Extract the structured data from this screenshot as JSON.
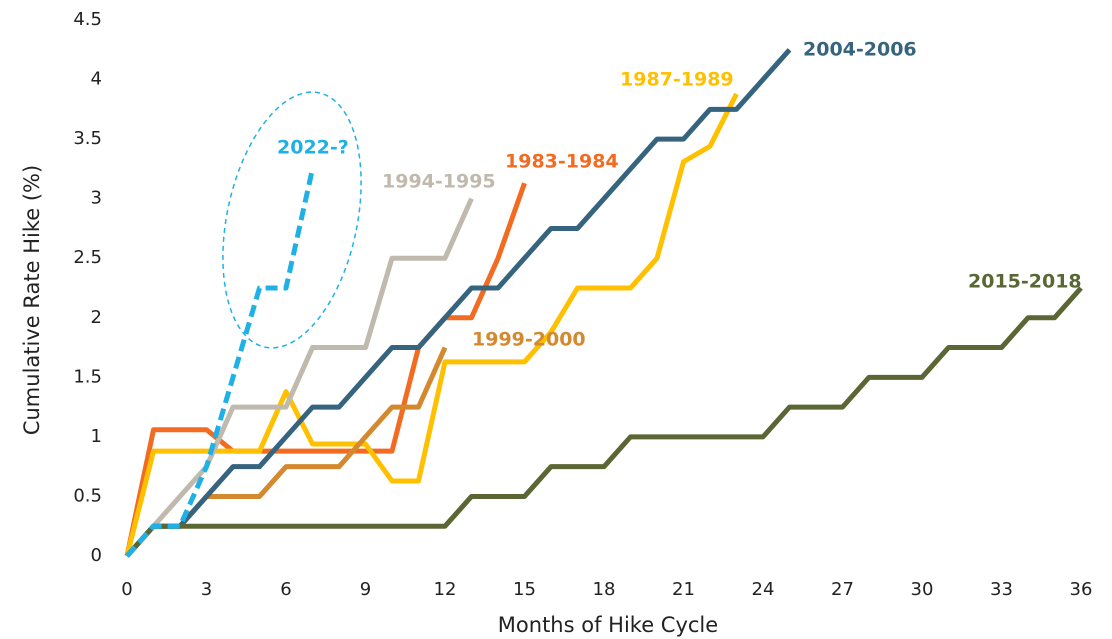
{
  "chart_data": {
    "type": "line",
    "xlabel": "Months of Hike Cycle",
    "ylabel": "Cumulative Rate Hike (%)",
    "x": [
      0,
      1,
      2,
      3,
      4,
      5,
      6,
      7,
      8,
      9,
      10,
      11,
      12,
      13,
      14,
      15,
      16,
      17,
      18,
      19,
      20,
      21,
      22,
      23,
      24,
      25,
      26,
      27,
      28,
      29,
      30,
      31,
      32,
      33,
      34,
      35,
      36
    ],
    "xlim": [
      0,
      36.5
    ],
    "xticks": [
      0,
      3,
      6,
      9,
      12,
      15,
      18,
      21,
      24,
      27,
      30,
      33,
      36
    ],
    "ylim": [
      0,
      4.5
    ],
    "yticks": [
      0,
      0.5,
      1,
      1.5,
      2,
      2.5,
      3,
      3.5,
      4,
      4.5
    ],
    "grid": false,
    "series": [
      {
        "name": "1983-1984",
        "color": "#f26b21",
        "values": [
          0,
          1.06,
          1.06,
          1.06,
          0.88,
          0.88,
          0.88,
          0.88,
          0.88,
          0.88,
          0.88,
          1.75,
          2.0,
          2.0,
          2.5,
          3.13,
          null,
          null,
          null,
          null,
          null,
          null,
          null,
          null,
          null,
          null,
          null,
          null,
          null,
          null,
          null,
          null,
          null,
          null,
          null,
          null,
          null
        ]
      },
      {
        "name": "1987-1989",
        "color": "#ffc000",
        "values": [
          0,
          0.88,
          0.88,
          0.88,
          0.88,
          0.88,
          1.38,
          0.94,
          0.94,
          0.94,
          0.63,
          0.63,
          1.63,
          1.63,
          1.63,
          1.63,
          1.88,
          2.25,
          2.25,
          2.25,
          2.5,
          3.31,
          3.44,
          3.88,
          null,
          null,
          null,
          null,
          null,
          null,
          null,
          null,
          null,
          null,
          null,
          null,
          null
        ]
      },
      {
        "name": "1994-1995",
        "color": "#c0b9ad",
        "values": [
          0,
          0.25,
          0.5,
          0.75,
          1.25,
          1.25,
          1.25,
          1.75,
          1.75,
          1.75,
          2.5,
          2.5,
          2.5,
          3.0,
          null,
          null,
          null,
          null,
          null,
          null,
          null,
          null,
          null,
          null,
          null,
          null,
          null,
          null,
          null,
          null,
          null,
          null,
          null,
          null,
          null,
          null,
          null
        ]
      },
      {
        "name": "1999-2000",
        "color": "#d4892f",
        "values": [
          0,
          0.25,
          0.25,
          0.5,
          0.5,
          0.5,
          0.75,
          0.75,
          0.75,
          1.0,
          1.25,
          1.25,
          1.75,
          null,
          null,
          null,
          null,
          null,
          null,
          null,
          null,
          null,
          null,
          null,
          null,
          null,
          null,
          null,
          null,
          null,
          null,
          null,
          null,
          null,
          null,
          null,
          null
        ]
      },
      {
        "name": "2004-2006",
        "color": "#36647f",
        "values": [
          0,
          0.25,
          0.25,
          0.5,
          0.75,
          0.75,
          1.0,
          1.25,
          1.25,
          1.5,
          1.75,
          1.75,
          2.0,
          2.25,
          2.25,
          2.5,
          2.75,
          2.75,
          3.0,
          3.25,
          3.5,
          3.5,
          3.75,
          3.75,
          4.0,
          4.25,
          null,
          null,
          null,
          null,
          null,
          null,
          null,
          null,
          null,
          null,
          null
        ]
      },
      {
        "name": "2015-2018",
        "color": "#5a6633",
        "values": [
          0,
          0.25,
          0.25,
          0.25,
          0.25,
          0.25,
          0.25,
          0.25,
          0.25,
          0.25,
          0.25,
          0.25,
          0.25,
          0.5,
          0.5,
          0.5,
          0.75,
          0.75,
          0.75,
          1.0,
          1.0,
          1.0,
          1.0,
          1.0,
          1.0,
          1.25,
          1.25,
          1.25,
          1.5,
          1.5,
          1.5,
          1.75,
          1.75,
          1.75,
          2.0,
          2.0,
          2.25
        ]
      },
      {
        "name": "2022-?",
        "color": "#1fb1e6",
        "dashed": true,
        "values": [
          0,
          0.25,
          0.25,
          0.75,
          1.5,
          2.25,
          2.25,
          3.25,
          null,
          null,
          null,
          null,
          null,
          null,
          null,
          null,
          null,
          null,
          null,
          null,
          null,
          null,
          null,
          null,
          null,
          null,
          null,
          null,
          null,
          null,
          null,
          null,
          null,
          null,
          null,
          null,
          null
        ]
      }
    ]
  }
}
